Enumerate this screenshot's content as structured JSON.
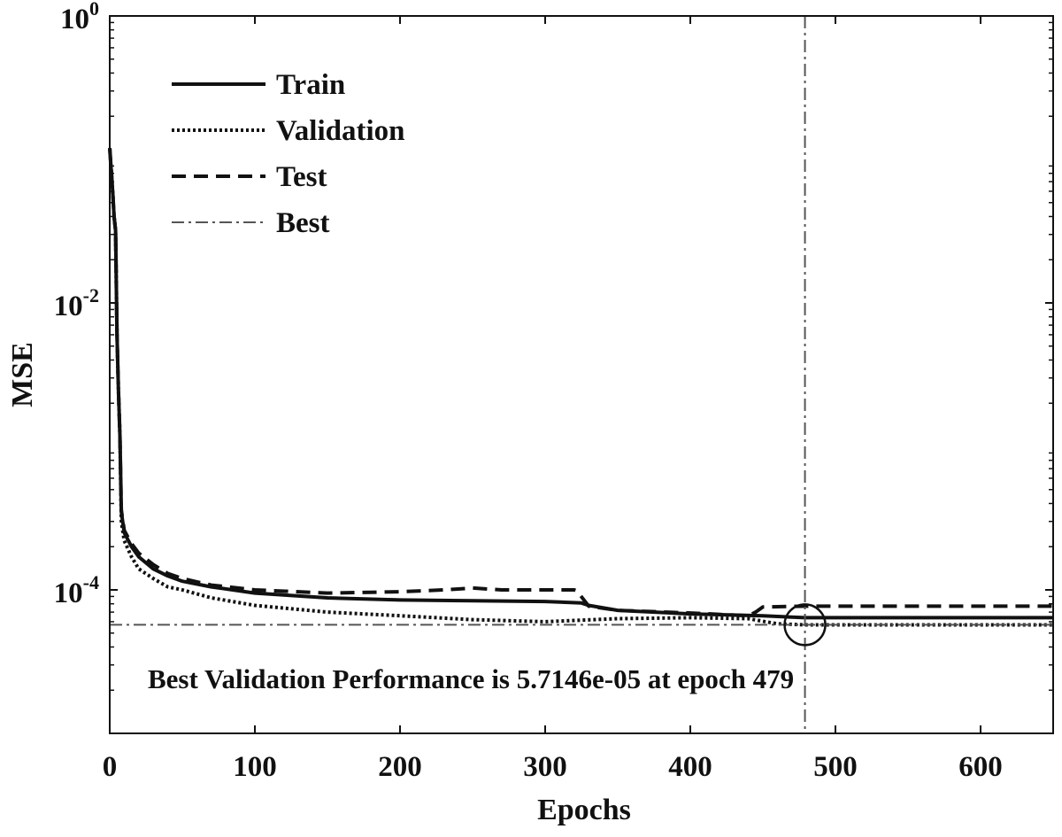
{
  "chart_data": {
    "type": "line",
    "xlabel": "Epochs",
    "ylabel": "MSE",
    "xlim": [
      0,
      650
    ],
    "ylim": [
      1e-05,
      1
    ],
    "yscale": "log",
    "x_ticks": [
      0,
      100,
      200,
      300,
      400,
      500,
      600
    ],
    "y_ticks": [
      {
        "value": 1,
        "base": "10",
        "exp": "0"
      },
      {
        "value": 0.01,
        "base": "10",
        "exp": "-2"
      },
      {
        "value": 0.0001,
        "base": "10",
        "exp": "-4"
      }
    ],
    "grid": false,
    "legend": {
      "position": "top-left"
    },
    "series": [
      {
        "name": "Train",
        "style": "solid",
        "x": [
          0,
          2,
          3,
          4,
          5,
          6,
          7,
          8,
          10,
          15,
          20,
          30,
          40,
          50,
          70,
          100,
          150,
          200,
          250,
          300,
          325,
          330,
          350,
          400,
          450,
          479,
          500,
          550,
          600,
          650
        ],
        "y": [
          0.12,
          0.06,
          0.04,
          0.032,
          0.006,
          0.0025,
          0.0012,
          0.00035,
          0.00025,
          0.0002,
          0.00017,
          0.00014,
          0.000125,
          0.000115,
          0.000105,
          9.5e-05,
          8.8e-05,
          8.5e-05,
          8.4e-05,
          8.3e-05,
          8.1e-05,
          7.8e-05,
          7.2e-05,
          6.8e-05,
          6.6e-05,
          6.4e-05,
          6.4e-05,
          6.4e-05,
          6.4e-05,
          6.4e-05
        ]
      },
      {
        "name": "Validation",
        "style": "dotted",
        "x": [
          0,
          2,
          3,
          4,
          5,
          6,
          7,
          8,
          10,
          15,
          20,
          30,
          40,
          50,
          70,
          100,
          150,
          200,
          250,
          300,
          350,
          400,
          440,
          460,
          479,
          500,
          550,
          600,
          650
        ],
        "y": [
          0.12,
          0.06,
          0.04,
          0.032,
          0.006,
          0.0025,
          0.0012,
          0.0003,
          0.00022,
          0.00017,
          0.00014,
          0.00012,
          0.000105,
          0.0001,
          8.8e-05,
          7.8e-05,
          7e-05,
          6.6e-05,
          6.2e-05,
          6e-05,
          6.3e-05,
          6.4e-05,
          6.3e-05,
          5.8e-05,
          5.7e-05,
          5.7e-05,
          5.7e-05,
          5.7e-05,
          5.7e-05
        ]
      },
      {
        "name": "Test",
        "style": "dashed",
        "x": [
          0,
          2,
          3,
          4,
          5,
          6,
          7,
          8,
          10,
          15,
          20,
          30,
          40,
          50,
          70,
          100,
          150,
          200,
          230,
          250,
          270,
          300,
          320,
          322,
          330,
          350,
          400,
          440,
          445,
          450,
          479,
          500,
          550,
          600,
          650
        ],
        "y": [
          0.12,
          0.06,
          0.04,
          0.032,
          0.006,
          0.0025,
          0.0012,
          0.00036,
          0.00026,
          0.00021,
          0.00018,
          0.00015,
          0.00013,
          0.00012,
          0.000108,
          0.0001,
          9.5e-05,
          9.7e-05,
          0.0001,
          0.000103,
          0.0001,
          0.0001,
          0.0001,
          9.8e-05,
          7.7e-05,
          7.2e-05,
          6.9e-05,
          6.6e-05,
          7e-05,
          7.6e-05,
          7.7e-05,
          7.7e-05,
          7.7e-05,
          7.7e-05,
          7.7e-05
        ]
      }
    ],
    "best": {
      "name": "Best",
      "epoch": 479,
      "value": 5.7146e-05
    },
    "annotation": "Best Validation Performance is 5.7146e-05 at epoch 479"
  }
}
